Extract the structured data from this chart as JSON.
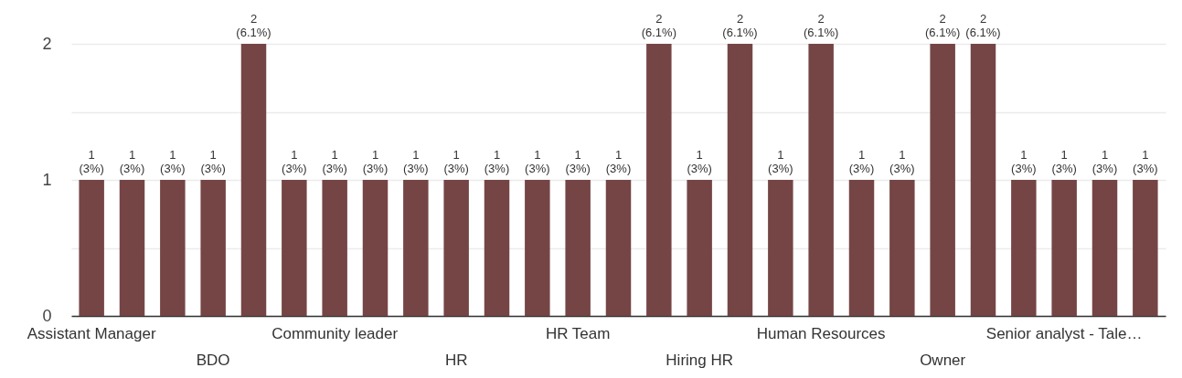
{
  "chart_data": {
    "type": "bar",
    "categories": [
      "Assistant Manager",
      null,
      null,
      "BDO",
      null,
      null,
      "Community leader",
      null,
      null,
      "HR",
      null,
      null,
      "HR Team",
      null,
      null,
      "Hiring HR",
      null,
      null,
      "Human Resources",
      null,
      null,
      "Owner",
      null,
      null,
      "Senior analyst - Tale…",
      null,
      null
    ],
    "series": [
      {
        "color": "#754545",
        "values": [
          1,
          1,
          1,
          1,
          2,
          1,
          1,
          1,
          1,
          1,
          1,
          1,
          1,
          1,
          2,
          1,
          2,
          1,
          2,
          1,
          1,
          2,
          2,
          1,
          1,
          1,
          1
        ],
        "value_labels": [
          "1 (3%)",
          "1 (3%)",
          "1 (3%)",
          "1 (3%)",
          "2 (6.1%)",
          "1 (3%)",
          "1 (3%)",
          "1 (3%)",
          "1 (3%)",
          "1 (3%)",
          "1 (3%)",
          "1 (3%)",
          "1 (3%)",
          "1 (3%)",
          "2 (6.1%)",
          "1 (3%)",
          "2 (6.1%)",
          "1 (3%)",
          "2 (6.1%)",
          "1 (3%)",
          "1 (3%)",
          "2 (6.1%)",
          "2 (6.1%)",
          "1 (3%)",
          "1 (3%)",
          "1 (3%)",
          "1 (3%)"
        ]
      }
    ],
    "ylim": [
      0,
      2
    ],
    "yticks": [
      0,
      {
        "value": 0.5,
        "label": null
      },
      1,
      {
        "value": 1.5,
        "label": null
      },
      2
    ],
    "grid": "y"
  }
}
